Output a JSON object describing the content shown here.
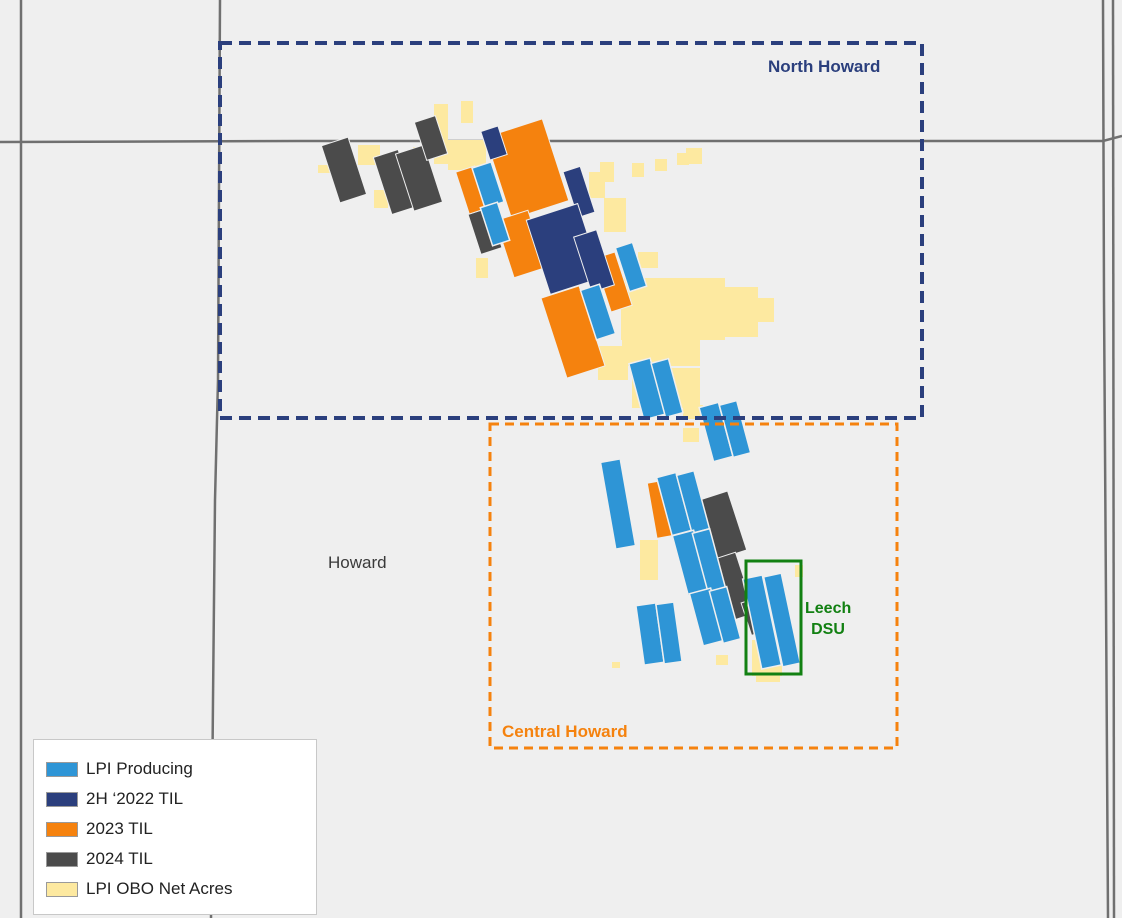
{
  "colors": {
    "background": "#efefef",
    "county_lines": "#707070",
    "lpi_producing": "#2e95d6",
    "til_2h_2022": "#2b3f7d",
    "til_2023": "#f5820e",
    "til_2024": "#4b4b4b",
    "obo_net_acres": "#fde9a0",
    "north_howard_box": "#2b3f7d",
    "central_howard_box": "#f5820e",
    "leech_dsu_box": "#128012"
  },
  "regions": {
    "north_howard": "North Howard",
    "central_howard": "Central Howard"
  },
  "county_label": "Howard",
  "leech_dsu": {
    "line1": "Leech",
    "line2": "DSU"
  },
  "legend": {
    "items": [
      {
        "label": "LPI Producing",
        "color": "#2e95d6",
        "icon": "lpi-producing-swatch"
      },
      {
        "label": "2H ‘2022 TIL",
        "color": "#2b3f7d",
        "icon": "til-2h-2022-swatch"
      },
      {
        "label": "2023 TIL",
        "color": "#f5820e",
        "icon": "til-2023-swatch"
      },
      {
        "label": "2024 TIL",
        "color": "#4b4b4b",
        "icon": "til-2024-swatch"
      },
      {
        "label": "LPI OBO Net Acres",
        "color": "#fde9a0",
        "icon": "obo-net-acres-swatch"
      }
    ]
  }
}
